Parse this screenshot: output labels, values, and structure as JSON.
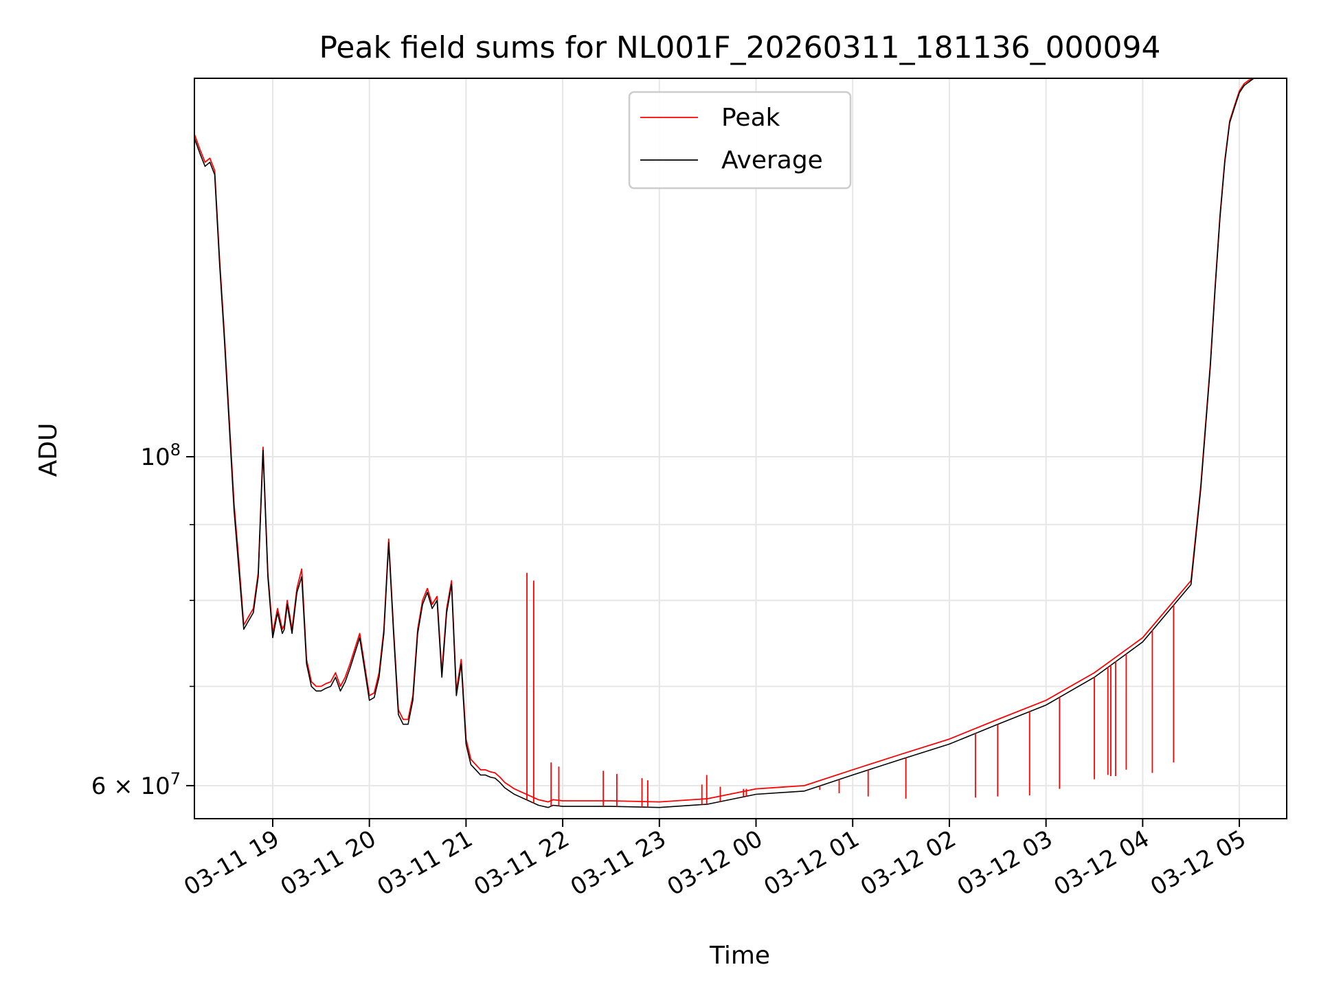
{
  "chart_data": {
    "type": "line",
    "title": "Peak field sums for NL001F_20260311_181136_000094",
    "xlabel": "Time",
    "ylabel": "ADU",
    "yscale": "log",
    "grid": true,
    "legend_position": "upper center",
    "colors": {
      "peak": "#ff0000",
      "average": "#000000",
      "grid": "#e6e6e6"
    },
    "x_unit": "hours since 2026-03-11 18:00",
    "xlim": [
      18.19,
      29.49
    ],
    "ylim": [
      57000000,
      180000000
    ],
    "x_ticks": [
      {
        "value": 19,
        "label": "03-11 19"
      },
      {
        "value": 20,
        "label": "03-11 20"
      },
      {
        "value": 21,
        "label": "03-11 21"
      },
      {
        "value": 22,
        "label": "03-11 22"
      },
      {
        "value": 23,
        "label": "03-11 23"
      },
      {
        "value": 24,
        "label": "03-12 00"
      },
      {
        "value": 25,
        "label": "03-12 01"
      },
      {
        "value": 26,
        "label": "03-12 02"
      },
      {
        "value": 27,
        "label": "03-12 03"
      },
      {
        "value": 28,
        "label": "03-12 04"
      },
      {
        "value": 29,
        "label": "03-12 05"
      }
    ],
    "y_major_ticks": [
      {
        "value": 60000000,
        "base": "6 × 10",
        "exp": "7"
      },
      {
        "value": 100000000,
        "base": "10",
        "exp": "8"
      }
    ],
    "y_minor_ticks": [
      70000000,
      80000000,
      90000000
    ],
    "series": [
      {
        "name": "Average",
        "x": [
          18.19,
          18.25,
          18.3,
          18.35,
          18.4,
          18.45,
          18.5,
          18.55,
          18.6,
          18.65,
          18.7,
          18.75,
          18.8,
          18.85,
          18.9,
          18.95,
          19.0,
          19.05,
          19.1,
          19.12,
          19.15,
          19.2,
          19.25,
          19.3,
          19.35,
          19.4,
          19.45,
          19.5,
          19.55,
          19.6,
          19.65,
          19.7,
          19.75,
          19.8,
          19.9,
          20.0,
          20.05,
          20.1,
          20.15,
          20.2,
          20.25,
          20.3,
          20.35,
          20.4,
          20.45,
          20.5,
          20.55,
          20.6,
          20.65,
          20.7,
          20.75,
          20.8,
          20.85,
          20.9,
          20.95,
          21.0,
          21.05,
          21.1,
          21.15,
          21.2,
          21.25,
          21.3,
          21.35,
          21.4,
          21.45,
          21.5,
          21.55,
          21.6,
          21.65,
          21.7,
          21.75,
          21.8,
          21.85,
          21.9,
          22.0,
          22.5,
          23.0,
          23.5,
          24.0,
          24.5,
          25.0,
          25.5,
          26.0,
          26.5,
          27.0,
          27.5,
          28.0,
          28.5,
          28.6,
          28.7,
          28.75,
          28.8,
          28.85,
          28.9,
          28.95,
          29.0,
          29.05,
          29.1,
          29.15,
          29.2,
          29.25,
          29.3,
          29.35,
          29.4,
          29.45,
          29.49
        ],
        "values": [
          164000000,
          160000000,
          157000000,
          158000000,
          155000000,
          135000000,
          120000000,
          105000000,
          92000000,
          84000000,
          76500000,
          77500000,
          78500000,
          83000000,
          101000000,
          83000000,
          75500000,
          78500000,
          76000000,
          76500000,
          79500000,
          76000000,
          81000000,
          83000000,
          72500000,
          70000000,
          69500000,
          69500000,
          69800000,
          70000000,
          71000000,
          69500000,
          70500000,
          72000000,
          75500000,
          68500000,
          68800000,
          71000000,
          76000000,
          87500000,
          76000000,
          67000000,
          66000000,
          66000000,
          68500000,
          76000000,
          79500000,
          81000000,
          79000000,
          80000000,
          71000000,
          78500000,
          82000000,
          69000000,
          72500000,
          64000000,
          62000000,
          61500000,
          61000000,
          61000000,
          60800000,
          60700000,
          60300000,
          59800000,
          59500000,
          59200000,
          59000000,
          58800000,
          58600000,
          58400000,
          58200000,
          58100000,
          58000000,
          58200000,
          58100000,
          58100000,
          58000000,
          58300000,
          59200000,
          59500000,
          61000000,
          62500000,
          64000000,
          66000000,
          68000000,
          71000000,
          75000000,
          82000000,
          95000000,
          115000000,
          130000000,
          145000000,
          158000000,
          168000000,
          172000000,
          176000000,
          178000000,
          179000000,
          180000000,
          180000000,
          180000000,
          180000000,
          180000000,
          180000000,
          180000000,
          180000000
        ]
      },
      {
        "name": "Peak",
        "x": [
          18.19,
          18.25,
          18.3,
          18.35,
          18.4,
          18.45,
          18.5,
          18.55,
          18.6,
          18.65,
          18.7,
          18.75,
          18.8,
          18.85,
          18.9,
          18.95,
          19.0,
          19.05,
          19.1,
          19.12,
          19.15,
          19.2,
          19.25,
          19.3,
          19.35,
          19.4,
          19.45,
          19.5,
          19.55,
          19.6,
          19.65,
          19.7,
          19.75,
          19.8,
          19.9,
          20.0,
          20.05,
          20.1,
          20.15,
          20.2,
          20.25,
          20.3,
          20.35,
          20.4,
          20.45,
          20.5,
          20.55,
          20.6,
          20.65,
          20.7,
          20.75,
          20.8,
          20.85,
          20.9,
          20.95,
          21.0,
          21.05,
          21.1,
          21.15,
          21.2,
          21.25,
          21.3,
          21.35,
          21.4,
          21.45,
          21.5,
          21.55,
          21.6,
          21.65,
          21.7,
          21.75,
          21.8,
          21.85,
          21.9,
          22.0,
          22.5,
          23.0,
          23.5,
          24.0,
          24.5,
          25.0,
          25.5,
          26.0,
          26.5,
          27.0,
          27.5,
          28.0,
          28.5,
          28.6,
          28.7,
          28.75,
          28.8,
          28.85,
          28.9,
          28.95,
          29.0,
          29.05,
          29.1,
          29.15,
          29.2,
          29.25,
          29.3,
          29.35,
          29.4,
          29.45,
          29.49
        ],
        "values": [
          165000000,
          161000000,
          158000000,
          159000000,
          156000000,
          136000000,
          121000000,
          106000000,
          93000000,
          85000000,
          77000000,
          78000000,
          79000000,
          83500000,
          101500000,
          83500000,
          76000000,
          79000000,
          76500000,
          77000000,
          80000000,
          76500000,
          81500000,
          84000000,
          73000000,
          70500000,
          70000000,
          70000000,
          70300000,
          70500000,
          71500000,
          70000000,
          71000000,
          72500000,
          76000000,
          69000000,
          69300000,
          71500000,
          76500000,
          88000000,
          76500000,
          67500000,
          66500000,
          66500000,
          69000000,
          76500000,
          80000000,
          81500000,
          79500000,
          80500000,
          71500000,
          79000000,
          82500000,
          69500000,
          73000000,
          64500000,
          62500000,
          62000000,
          61500000,
          61500000,
          61300000,
          61200000,
          60800000,
          60300000,
          60000000,
          59700000,
          59500000,
          59300000,
          59100000,
          58900000,
          58700000,
          58600000,
          58500000,
          58700000,
          58600000,
          58600000,
          58500000,
          58800000,
          59700000,
          60000000,
          61500000,
          63000000,
          64500000,
          66500000,
          68500000,
          71500000,
          75500000,
          82500000,
          95500000,
          115500000,
          130500000,
          145500000,
          158500000,
          168500000,
          172500000,
          176500000,
          178500000,
          179500000,
          180000000,
          180000000,
          180000000,
          180000000,
          180000000,
          180000000,
          180000000,
          180000000
        ]
      }
    ],
    "peak_spikes": [
      {
        "x": 21.63,
        "value": 83500000
      },
      {
        "x": 21.7,
        "value": 82500000
      },
      {
        "x": 21.88,
        "value": 62200000
      },
      {
        "x": 21.96,
        "value": 61800000
      },
      {
        "x": 22.42,
        "value": 61400000
      },
      {
        "x": 22.56,
        "value": 61100000
      },
      {
        "x": 22.82,
        "value": 60700000
      },
      {
        "x": 22.88,
        "value": 60500000
      },
      {
        "x": 23.44,
        "value": 60100000
      },
      {
        "x": 23.49,
        "value": 61000000
      },
      {
        "x": 23.63,
        "value": 59900000
      },
      {
        "x": 23.87,
        "value": 59700000
      },
      {
        "x": 23.9,
        "value": 59700000
      },
      {
        "x": 24.66,
        "value": 59600000
      },
      {
        "x": 24.86,
        "value": 59300000
      },
      {
        "x": 25.16,
        "value": 59000000
      },
      {
        "x": 25.55,
        "value": 58800000
      },
      {
        "x": 26.27,
        "value": 58900000
      },
      {
        "x": 26.5,
        "value": 59000000
      },
      {
        "x": 26.83,
        "value": 59100000
      },
      {
        "x": 27.14,
        "value": 59700000
      },
      {
        "x": 27.5,
        "value": 60600000
      },
      {
        "x": 27.64,
        "value": 61000000
      },
      {
        "x": 27.67,
        "value": 60900000
      },
      {
        "x": 27.72,
        "value": 60900000
      },
      {
        "x": 27.83,
        "value": 61500000
      },
      {
        "x": 28.1,
        "value": 61200000
      },
      {
        "x": 28.32,
        "value": 62200000
      }
    ]
  }
}
